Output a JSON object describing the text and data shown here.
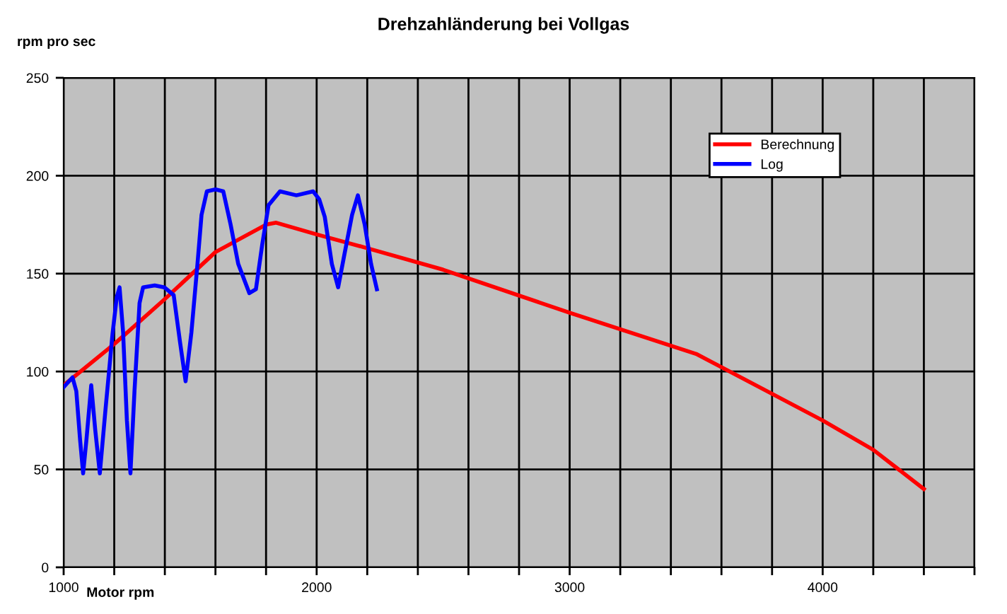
{
  "chart_data": {
    "type": "line",
    "title": "Drehzahländerung bei Vollgas",
    "xlabel": "Motor rpm",
    "ylabel": "rpm pro sec",
    "xlim": [
      1000,
      4600
    ],
    "xticks": [
      1000,
      {
        "value": 1200,
        "label": null
      },
      {
        "value": 1400,
        "label": null
      },
      {
        "value": 1600,
        "label": null
      },
      {
        "value": 1800,
        "label": null
      },
      2000,
      {
        "value": 2200,
        "label": null
      },
      {
        "value": 2400,
        "label": null
      },
      {
        "value": 2600,
        "label": null
      },
      {
        "value": 2800,
        "label": null
      },
      3000,
      {
        "value": 3200,
        "label": null
      },
      {
        "value": 3400,
        "label": null
      },
      {
        "value": 3600,
        "label": null
      },
      {
        "value": 3800,
        "label": null
      },
      4000,
      {
        "value": 4200,
        "label": null
      },
      {
        "value": 4400,
        "label": null
      },
      {
        "value": 4600,
        "label": null
      }
    ],
    "ylim": [
      0,
      250
    ],
    "yticks": [
      0,
      50,
      100,
      150,
      200,
      250
    ],
    "grid": true,
    "legend": "top right",
    "marker": "none",
    "line_style": "solid",
    "series": [
      {
        "name": "Berechnung",
        "color": "#ff0000",
        "x": [
          1000,
          1200,
          1400,
          1600,
          1800,
          1840,
          2000,
          2200,
          2500,
          3000,
          3500,
          4000,
          4200,
          4400
        ],
        "values": [
          93,
          114,
          137,
          161,
          175,
          176,
          170,
          163,
          152,
          130,
          109,
          75,
          60,
          40
        ]
      },
      {
        "name": "Log",
        "color": "#0000ff",
        "x": [
          1000,
          1035,
          1050,
          1065,
          1077,
          1090,
          1109,
          1125,
          1143,
          1165,
          1193,
          1210,
          1221,
          1235,
          1250,
          1264,
          1280,
          1300,
          1314,
          1360,
          1398,
          1435,
          1460,
          1482,
          1505,
          1529,
          1545,
          1566,
          1600,
          1631,
          1660,
          1690,
          1734,
          1760,
          1785,
          1810,
          1855,
          1920,
          1986,
          2010,
          2032,
          2060,
          2085,
          2110,
          2140,
          2163,
          2190,
          2215,
          2238
        ],
        "values": [
          92,
          97,
          90,
          65,
          48,
          65,
          93,
          70,
          48,
          80,
          119,
          138,
          143,
          120,
          75,
          48,
          90,
          135,
          143,
          144,
          143,
          139,
          115,
          95,
          120,
          155,
          180,
          192,
          193,
          192,
          175,
          155,
          140,
          142,
          165,
          185,
          192,
          190,
          192,
          188,
          179,
          155,
          143,
          160,
          180,
          190,
          175,
          155,
          142
        ]
      }
    ]
  }
}
